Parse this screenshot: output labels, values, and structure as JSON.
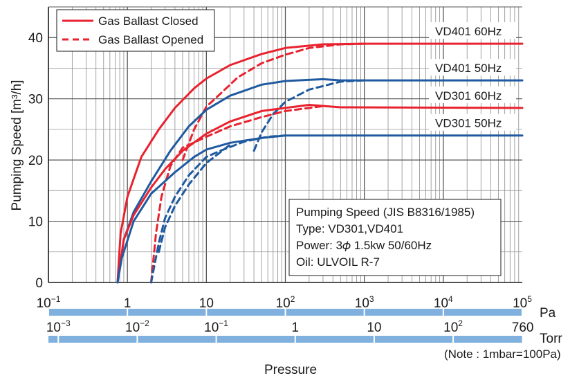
{
  "chart_data": {
    "type": "line",
    "title": "",
    "xlabel": "Pressure",
    "ylabel": "Pumping Speed [m³/h]",
    "x_scale": "log",
    "x_unit": "Pa",
    "xlim": [
      0.1,
      100000
    ],
    "ylim": [
      0,
      45
    ],
    "y_ticks": [
      "0",
      "10",
      "20",
      "30",
      "40"
    ],
    "grid": true,
    "pa_axis": {
      "unit": "Pa",
      "ticks": [
        {
          "base": "10",
          "exp": "−1",
          "value": 0.1
        },
        {
          "base": "1",
          "exp": "",
          "value": 1
        },
        {
          "base": "10",
          "exp": "",
          "value": 10
        },
        {
          "base": "10",
          "exp": "2",
          "value": 100
        },
        {
          "base": "10",
          "exp": "3",
          "value": 1000
        },
        {
          "base": "10",
          "exp": "4",
          "value": 10000
        },
        {
          "base": "10",
          "exp": "5",
          "value": 100000
        }
      ]
    },
    "torr_axis": {
      "unit": "Torr",
      "ticks": [
        {
          "base": "10",
          "exp": "−3",
          "value": 0.1333
        },
        {
          "base": "10",
          "exp": "−2",
          "value": 1.333
        },
        {
          "base": "10",
          "exp": "−1",
          "value": 13.33
        },
        {
          "base": "1",
          "exp": "",
          "value": 133.3
        },
        {
          "base": "10",
          "exp": "",
          "value": 1333
        },
        {
          "base": "10",
          "exp": "2",
          "value": 13330
        },
        {
          "base": "760",
          "exp": "",
          "value": 101325
        }
      ]
    },
    "legend": {
      "placement": "top-left",
      "entries": [
        {
          "label": "Gas Ballast Closed",
          "style": "solid",
          "color": "#e8222e"
        },
        {
          "label": "Gas Ballast Opened",
          "style": "dashed",
          "color": "#e8222e"
        }
      ]
    },
    "series": [
      {
        "name": "VD401 60Hz",
        "model": "VD401",
        "freq": "60Hz",
        "gas_ballast": "closed",
        "color": "#e8222e",
        "dashed": false,
        "points": [
          [
            0.75,
            0
          ],
          [
            0.82,
            8
          ],
          [
            1.0,
            14
          ],
          [
            1.5,
            20.5
          ],
          [
            2.5,
            25
          ],
          [
            4,
            28.5
          ],
          [
            7,
            31.7
          ],
          [
            10,
            33.3
          ],
          [
            20,
            35.5
          ],
          [
            50,
            37.3
          ],
          [
            100,
            38.3
          ],
          [
            300,
            38.9
          ],
          [
            1000,
            39
          ],
          [
            100000,
            39
          ]
        ]
      },
      {
        "name": "VD401 60Hz",
        "model": "VD401",
        "freq": "60Hz",
        "gas_ballast": "opened",
        "color": "#e8222e",
        "dashed": true,
        "points": [
          [
            5,
            20
          ],
          [
            7,
            25
          ],
          [
            10,
            28.7
          ],
          [
            15,
            30.8
          ],
          [
            25,
            33.5
          ],
          [
            50,
            35.8
          ],
          [
            100,
            37.2
          ],
          [
            200,
            38.3
          ],
          [
            500,
            38.9
          ],
          [
            1000,
            39
          ]
        ]
      },
      {
        "name": "VD401 50Hz",
        "model": "VD401",
        "freq": "50Hz",
        "gas_ballast": "closed",
        "color": "#1f5aa0",
        "dashed": false,
        "points": [
          [
            0.75,
            0
          ],
          [
            0.9,
            7
          ],
          [
            1.2,
            11.5
          ],
          [
            2,
            16.5
          ],
          [
            3.5,
            21.5
          ],
          [
            6,
            25.5
          ],
          [
            10,
            28.2
          ],
          [
            20,
            30.5
          ],
          [
            50,
            32.3
          ],
          [
            100,
            32.9
          ],
          [
            300,
            33.2
          ],
          [
            500,
            33
          ],
          [
            100000,
            33
          ]
        ]
      },
      {
        "name": "VD401 50Hz",
        "model": "VD401",
        "freq": "50Hz",
        "gas_ballast": "opened",
        "color": "#1f5aa0",
        "dashed": true,
        "points": [
          [
            40,
            21.5
          ],
          [
            50,
            24.5
          ],
          [
            70,
            27.5
          ],
          [
            100,
            29.5
          ],
          [
            200,
            31.5
          ],
          [
            500,
            32.8
          ],
          [
            1000,
            33
          ]
        ]
      },
      {
        "name": "VD301 60Hz",
        "model": "VD301",
        "freq": "60Hz",
        "gas_ballast": "closed",
        "color": "#e8222e",
        "dashed": false,
        "points": [
          [
            0.75,
            0
          ],
          [
            0.9,
            7
          ],
          [
            1.2,
            11
          ],
          [
            2,
            15.5
          ],
          [
            3,
            18.5
          ],
          [
            5,
            21.5
          ],
          [
            10,
            24.3
          ],
          [
            20,
            26.3
          ],
          [
            50,
            28
          ],
          [
            100,
            28.5
          ],
          [
            200,
            29
          ],
          [
            500,
            28.6
          ],
          [
            100000,
            28.5
          ]
        ]
      },
      {
        "name": "VD301 60Hz",
        "model": "VD301",
        "freq": "60Hz",
        "gas_ballast": "opened",
        "color": "#e8222e",
        "dashed": true,
        "points": [
          [
            2,
            0
          ],
          [
            2.3,
            8
          ],
          [
            2.7,
            14
          ],
          [
            3.5,
            19
          ],
          [
            5,
            22
          ],
          [
            10,
            23.8
          ],
          [
            20,
            25.5
          ],
          [
            50,
            27
          ],
          [
            100,
            28
          ],
          [
            300,
            28.8
          ]
        ]
      },
      {
        "name": "VD301 50Hz",
        "model": "VD301",
        "freq": "50Hz",
        "gas_ballast": "closed",
        "color": "#1f5aa0",
        "dashed": false,
        "points": [
          [
            0.75,
            0
          ],
          [
            0.85,
            4
          ],
          [
            1.2,
            10
          ],
          [
            2,
            14.5
          ],
          [
            4,
            18
          ],
          [
            7,
            20.5
          ],
          [
            10,
            21.7
          ],
          [
            20,
            22.8
          ],
          [
            50,
            23.6
          ],
          [
            100,
            24
          ],
          [
            300,
            24
          ],
          [
            100000,
            24
          ]
        ]
      },
      {
        "name": "VD301 50Hz",
        "model": "VD301",
        "freq": "50Hz",
        "gas_ballast": "opened",
        "color": "#1f5aa0",
        "dashed": true,
        "points": [
          [
            2,
            0
          ],
          [
            2.5,
            6.5
          ],
          [
            3,
            10.5
          ],
          [
            4,
            14
          ],
          [
            6,
            17.5
          ],
          [
            10,
            20.5
          ],
          [
            15,
            21.5
          ],
          [
            30,
            23
          ],
          [
            60,
            23.8
          ],
          [
            100,
            24
          ]
        ]
      },
      {
        "name": "VD301 50Hz",
        "model": "VD301",
        "freq": "50Hz",
        "gas_ballast": "opened",
        "color": "#1f5aa0",
        "dashed": true,
        "points": [
          [
            2.5,
            5
          ],
          [
            3,
            9
          ],
          [
            4,
            12.5
          ],
          [
            6,
            16
          ],
          [
            10,
            19.5
          ],
          [
            20,
            22.5
          ]
        ]
      }
    ],
    "series_labels": [
      "VD401 60Hz",
      "VD401 50Hz",
      "VD301 60Hz",
      "VD301 50Hz"
    ],
    "info_box": {
      "placement": "bottom-right",
      "lines": [
        "Pumping Speed (JIS B8316/1985)",
        "Type: VD301,VD401",
        "Power: 3𝜙 1.5kw 50/60Hz",
        "Oil: ULVOIL R-7"
      ]
    },
    "note": "(Note : 1mbar=100Pa)",
    "colors": {
      "closed_red": "#e8222e",
      "blue": "#1f5aa0",
      "scale_bar": "#7fb0de"
    }
  }
}
